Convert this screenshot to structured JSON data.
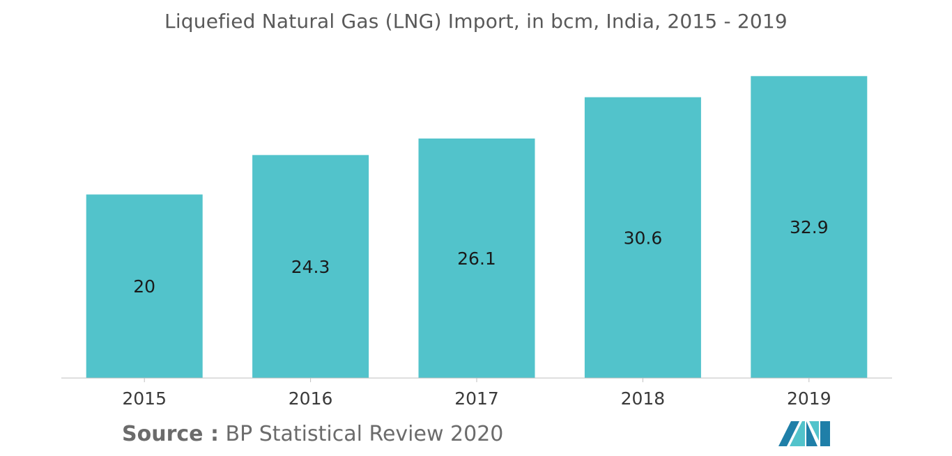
{
  "chart_data": {
    "type": "bar",
    "title": "Liquefied Natural Gas (LNG) Import, in bcm, India, 2015 - 2019",
    "xlabel": "",
    "ylabel": "",
    "categories": [
      "2015",
      "2016",
      "2017",
      "2018",
      "2019"
    ],
    "values": [
      20,
      24.3,
      26.1,
      30.6,
      32.9
    ],
    "value_labels": [
      "20",
      "24.3",
      "26.1",
      "30.6",
      "32.9"
    ],
    "ylim": [
      0,
      33
    ],
    "grid": false,
    "bar_color": "#52c3cb",
    "axis_color": "#bfbfbf"
  },
  "source": {
    "label": "Source :",
    "text": " BP Statistical Review 2020"
  },
  "logo": {
    "icon": "mordor-intelligence-logo-icon",
    "colors": [
      "#1f7fa8",
      "#52c3cb"
    ]
  }
}
